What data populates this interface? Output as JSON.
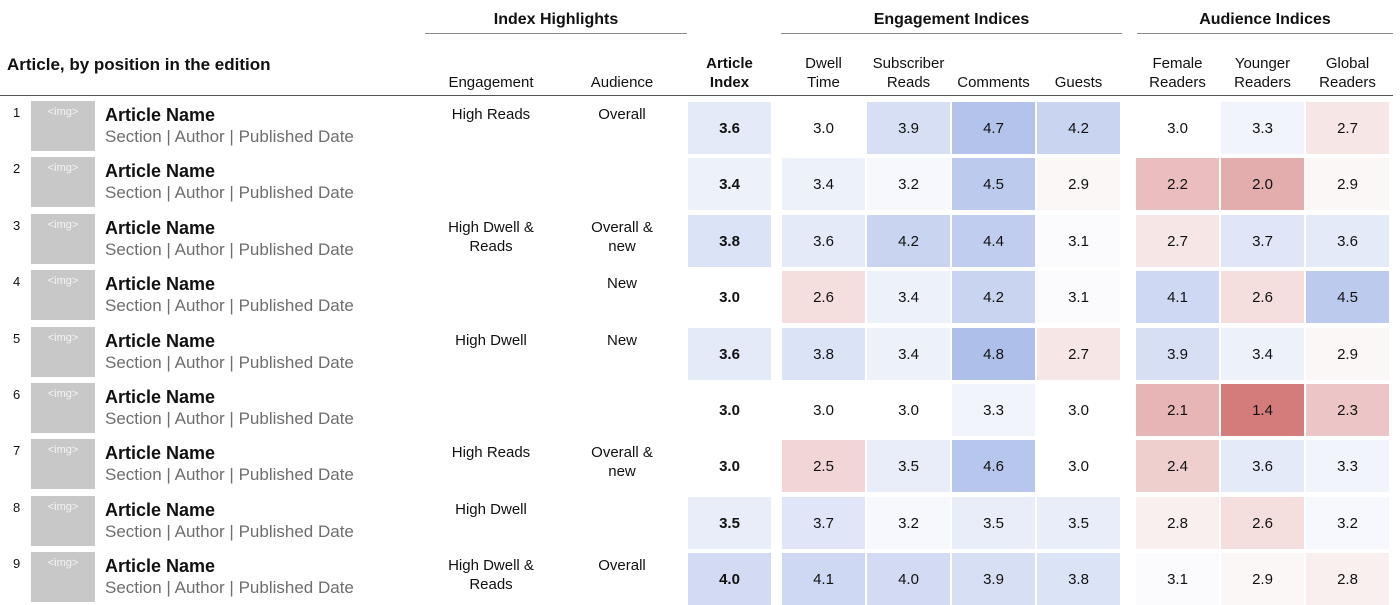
{
  "header": {
    "title": "Article, by position in the edition",
    "groups": {
      "highlights": "Index Highlights",
      "engagement": "Engagement Indices",
      "audience": "Audience Indices"
    },
    "columns": {
      "engagement_hl": "Engagement",
      "audience_hl": "Audience",
      "article_index": "Article\nIndex",
      "dwell_time": "Dwell\nTime",
      "subscriber_reads": "Subscriber\nReads",
      "comments": "Comments",
      "guests": "Guests",
      "female_readers": "Female\nReaders",
      "younger_readers": "Younger\nReaders",
      "global_readers": "Global\nReaders"
    }
  },
  "rows": [
    {
      "num": "1",
      "img": "<img>",
      "name": "Article Name",
      "meta": "Section | Author | Published Date",
      "engagement": "High Reads",
      "audience": "Overall",
      "article_index": "3.6",
      "dwell_time": "3.0",
      "subscriber_reads": "3.9",
      "comments": "4.7",
      "guests": "4.2",
      "female_readers": "3.0",
      "younger_readers": "3.3",
      "global_readers": "2.7"
    },
    {
      "num": "2",
      "img": "<img>",
      "name": "Article Name",
      "meta": "Section | Author | Published Date",
      "engagement": "",
      "audience": "",
      "article_index": "3.4",
      "dwell_time": "3.4",
      "subscriber_reads": "3.2",
      "comments": "4.5",
      "guests": "2.9",
      "female_readers": "2.2",
      "younger_readers": "2.0",
      "global_readers": "2.9"
    },
    {
      "num": "3",
      "img": "<img>",
      "name": "Article Name",
      "meta": "Section | Author | Published Date",
      "engagement": "High Dwell &\nReads",
      "audience": "Overall &\nnew",
      "article_index": "3.8",
      "dwell_time": "3.6",
      "subscriber_reads": "4.2",
      "comments": "4.4",
      "guests": "3.1",
      "female_readers": "2.7",
      "younger_readers": "3.7",
      "global_readers": "3.6"
    },
    {
      "num": "4",
      "img": "<img>",
      "name": "Article Name",
      "meta": "Section | Author | Published Date",
      "engagement": "",
      "audience": "New",
      "article_index": "3.0",
      "dwell_time": "2.6",
      "subscriber_reads": "3.4",
      "comments": "4.2",
      "guests": "3.1",
      "female_readers": "4.1",
      "younger_readers": "2.6",
      "global_readers": "4.5"
    },
    {
      "num": "5",
      "img": "<img>",
      "name": "Article Name",
      "meta": "Section | Author | Published Date",
      "engagement": "High Dwell",
      "audience": "New",
      "article_index": "3.6",
      "dwell_time": "3.8",
      "subscriber_reads": "3.4",
      "comments": "4.8",
      "guests": "2.7",
      "female_readers": "3.9",
      "younger_readers": "3.4",
      "global_readers": "2.9"
    },
    {
      "num": "6",
      "img": "<img>",
      "name": "Article Name",
      "meta": "Section | Author | Published Date",
      "engagement": "",
      "audience": "",
      "article_index": "3.0",
      "dwell_time": "3.0",
      "subscriber_reads": "3.0",
      "comments": "3.3",
      "guests": "3.0",
      "female_readers": "2.1",
      "younger_readers": "1.4",
      "global_readers": "2.3"
    },
    {
      "num": "7",
      "img": "<img>",
      "name": "Article Name",
      "meta": "Section | Author | Published Date",
      "engagement": "High Reads",
      "audience": "Overall &\nnew",
      "article_index": "3.0",
      "dwell_time": "2.5",
      "subscriber_reads": "3.5",
      "comments": "4.6",
      "guests": "3.0",
      "female_readers": "2.4",
      "younger_readers": "3.6",
      "global_readers": "3.3"
    },
    {
      "num": "8",
      "img": "<img>",
      "name": "Article Name",
      "meta": "Section | Author | Published Date",
      "engagement": "High Dwell",
      "audience": "",
      "article_index": "3.5",
      "dwell_time": "3.7",
      "subscriber_reads": "3.2",
      "comments": "3.5",
      "guests": "3.5",
      "female_readers": "2.8",
      "younger_readers": "2.6",
      "global_readers": "3.2"
    },
    {
      "num": "9",
      "img": "<img>",
      "name": "Article Name",
      "meta": "Section | Author | Published Date",
      "engagement": "High Dwell &\nReads",
      "audience": "Overall",
      "article_index": "4.0",
      "dwell_time": "4.1",
      "subscriber_reads": "4.0",
      "comments": "3.9",
      "guests": "3.8",
      "female_readers": "3.1",
      "younger_readers": "2.9",
      "global_readers": "2.8"
    }
  ],
  "colors": {
    "high": "#aebfea",
    "neutral": "#ffffff",
    "low": "#d47c7c"
  }
}
